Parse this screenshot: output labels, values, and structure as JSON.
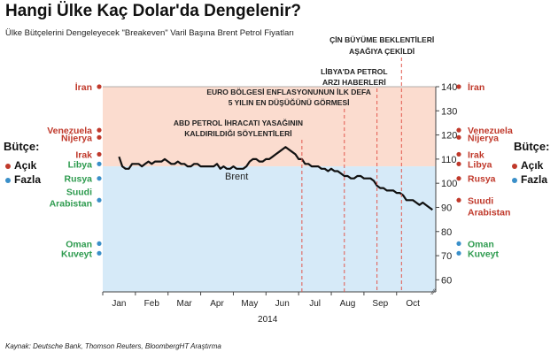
{
  "title": "Hangi Ülke Kaç Dolar'da Dengelenir?",
  "subtitle": "Ülke Bütçelerini Dengeleyecek \"Breakeven\" Varil Başına Brent Petrol Fiyatları",
  "source": "Kaynak: Deutsche Bank, Thomson Reuters, BloombergHT Araştırma",
  "side_label": "Bütçe:",
  "legend": {
    "deficit": "Açık",
    "surplus": "Fazla"
  },
  "colors": {
    "deficit": "#c0392b",
    "surplus": "#3a8fc9",
    "deficit_area": "#fbdccf",
    "surplus_area": "#d6eaf8",
    "line": "#111111",
    "event_line": "#e2574c"
  },
  "chart_data": {
    "type": "line",
    "title": "Hangi Ülke Kaç Dolar'da Dengelenir?",
    "xlabel": "2014",
    "ylabel": "",
    "ylim": [
      55,
      140
    ],
    "yticks": [
      60,
      70,
      80,
      90,
      100,
      110,
      120,
      130,
      140
    ],
    "xticks": [
      "Jan",
      "Feb",
      "Mar",
      "Apr",
      "May",
      "Jun",
      "Jul",
      "Aug",
      "Sep",
      "Oct"
    ],
    "series": [
      {
        "name": "Brent",
        "x": [
          0.0,
          0.1,
          0.2,
          0.3,
          0.4,
          0.5,
          0.6,
          0.7,
          0.8,
          0.9,
          1.0,
          1.1,
          1.2,
          1.3,
          1.4,
          1.5,
          1.6,
          1.7,
          1.8,
          1.9,
          2.0,
          2.1,
          2.2,
          2.3,
          2.4,
          2.5,
          2.6,
          2.7,
          2.8,
          2.9,
          3.0,
          3.1,
          3.2,
          3.3,
          3.4,
          3.5,
          3.6,
          3.7,
          3.8,
          3.9,
          4.0,
          4.1,
          4.2,
          4.3,
          4.4,
          4.5,
          4.6,
          4.7,
          4.8,
          4.9,
          5.0,
          5.1,
          5.2,
          5.3,
          5.4,
          5.5,
          5.6,
          5.7,
          5.8,
          5.9,
          6.0,
          6.1,
          6.2,
          6.3,
          6.4,
          6.5,
          6.6,
          6.7,
          6.8,
          6.9,
          7.0,
          7.1,
          7.2,
          7.3,
          7.4,
          7.5,
          7.6,
          7.7,
          7.8,
          7.9,
          8.0,
          8.1,
          8.2,
          8.3,
          8.4,
          8.5,
          8.6,
          8.7,
          8.8,
          8.9,
          9.0,
          9.1,
          9.2,
          9.3,
          9.4,
          9.5,
          9.6
        ],
        "values": [
          111,
          107,
          106,
          106,
          108,
          108,
          108,
          107,
          108,
          109,
          108,
          109,
          109,
          109,
          110,
          109,
          108,
          108,
          109,
          108,
          108,
          107,
          107,
          108,
          108,
          107,
          107,
          107,
          107,
          107,
          108,
          106,
          107,
          106,
          106,
          107,
          106,
          106,
          106,
          107,
          109,
          110,
          110,
          109,
          109,
          110,
          110,
          111,
          112,
          113,
          114,
          115,
          114,
          113,
          112,
          110,
          110,
          108,
          108,
          107,
          107,
          107,
          106,
          106,
          105,
          106,
          105,
          105,
          104,
          103,
          103,
          102,
          102,
          103,
          103,
          102,
          102,
          102,
          101,
          99,
          98,
          98,
          97,
          97,
          97,
          96,
          96,
          95,
          93,
          93,
          93,
          92,
          91,
          92,
          91,
          90,
          89
        ]
      }
    ],
    "area_split": 107,
    "series_label": "Brent",
    "events": [
      {
        "x": 5.6,
        "label_lines": [
          "ABD PETROL İHRACATI YASAĞININ",
          "KALDIRILDIĞI SÖYLENTİLERİ"
        ]
      },
      {
        "x": 6.9,
        "label_lines": [
          "EURO BÖLGESİ ENFLASYONUNUN İLK DEFA",
          "5 YILIN EN DÜŞÜĞÜNÜ GÖRMESİ"
        ]
      },
      {
        "x": 7.9,
        "label_lines": [
          "LİBYA'DA PETROL",
          "ARZI HABERLERİ"
        ]
      },
      {
        "x": 8.65,
        "label_lines": [
          "ÇİN BÜYÜME BEKLENTİLERİ",
          "AŞAĞIYA ÇEKİLDİ"
        ]
      }
    ],
    "countries_left": [
      {
        "name": "İran",
        "value": 140,
        "status": "deficit"
      },
      {
        "name": "Venezuela",
        "value": 122,
        "status": "deficit"
      },
      {
        "name": "Nijerya",
        "value": 119,
        "status": "deficit"
      },
      {
        "name": "Irak",
        "value": 112,
        "status": "deficit"
      },
      {
        "name": "Libya",
        "value": 108,
        "status": "surplus"
      },
      {
        "name": "Rusya",
        "value": 102,
        "status": "surplus"
      },
      {
        "name": "Suudi Arabistan",
        "value": 93,
        "status": "surplus"
      },
      {
        "name": "Oman",
        "value": 75,
        "status": "surplus"
      },
      {
        "name": "Kuveyt",
        "value": 71,
        "status": "surplus"
      }
    ],
    "countries_right": [
      {
        "name": "İran",
        "value": 140,
        "status": "deficit"
      },
      {
        "name": "Venezuela",
        "value": 122,
        "status": "deficit"
      },
      {
        "name": "Nijerya",
        "value": 119,
        "status": "deficit"
      },
      {
        "name": "Irak",
        "value": 112,
        "status": "deficit"
      },
      {
        "name": "Libya",
        "value": 108,
        "status": "deficit"
      },
      {
        "name": "Rusya",
        "value": 102,
        "status": "deficit"
      },
      {
        "name": "Suudi Arabistan",
        "value": 93,
        "status": "deficit"
      },
      {
        "name": "Oman",
        "value": 75,
        "status": "surplus"
      },
      {
        "name": "Kuveyt",
        "value": 71,
        "status": "surplus"
      }
    ]
  }
}
